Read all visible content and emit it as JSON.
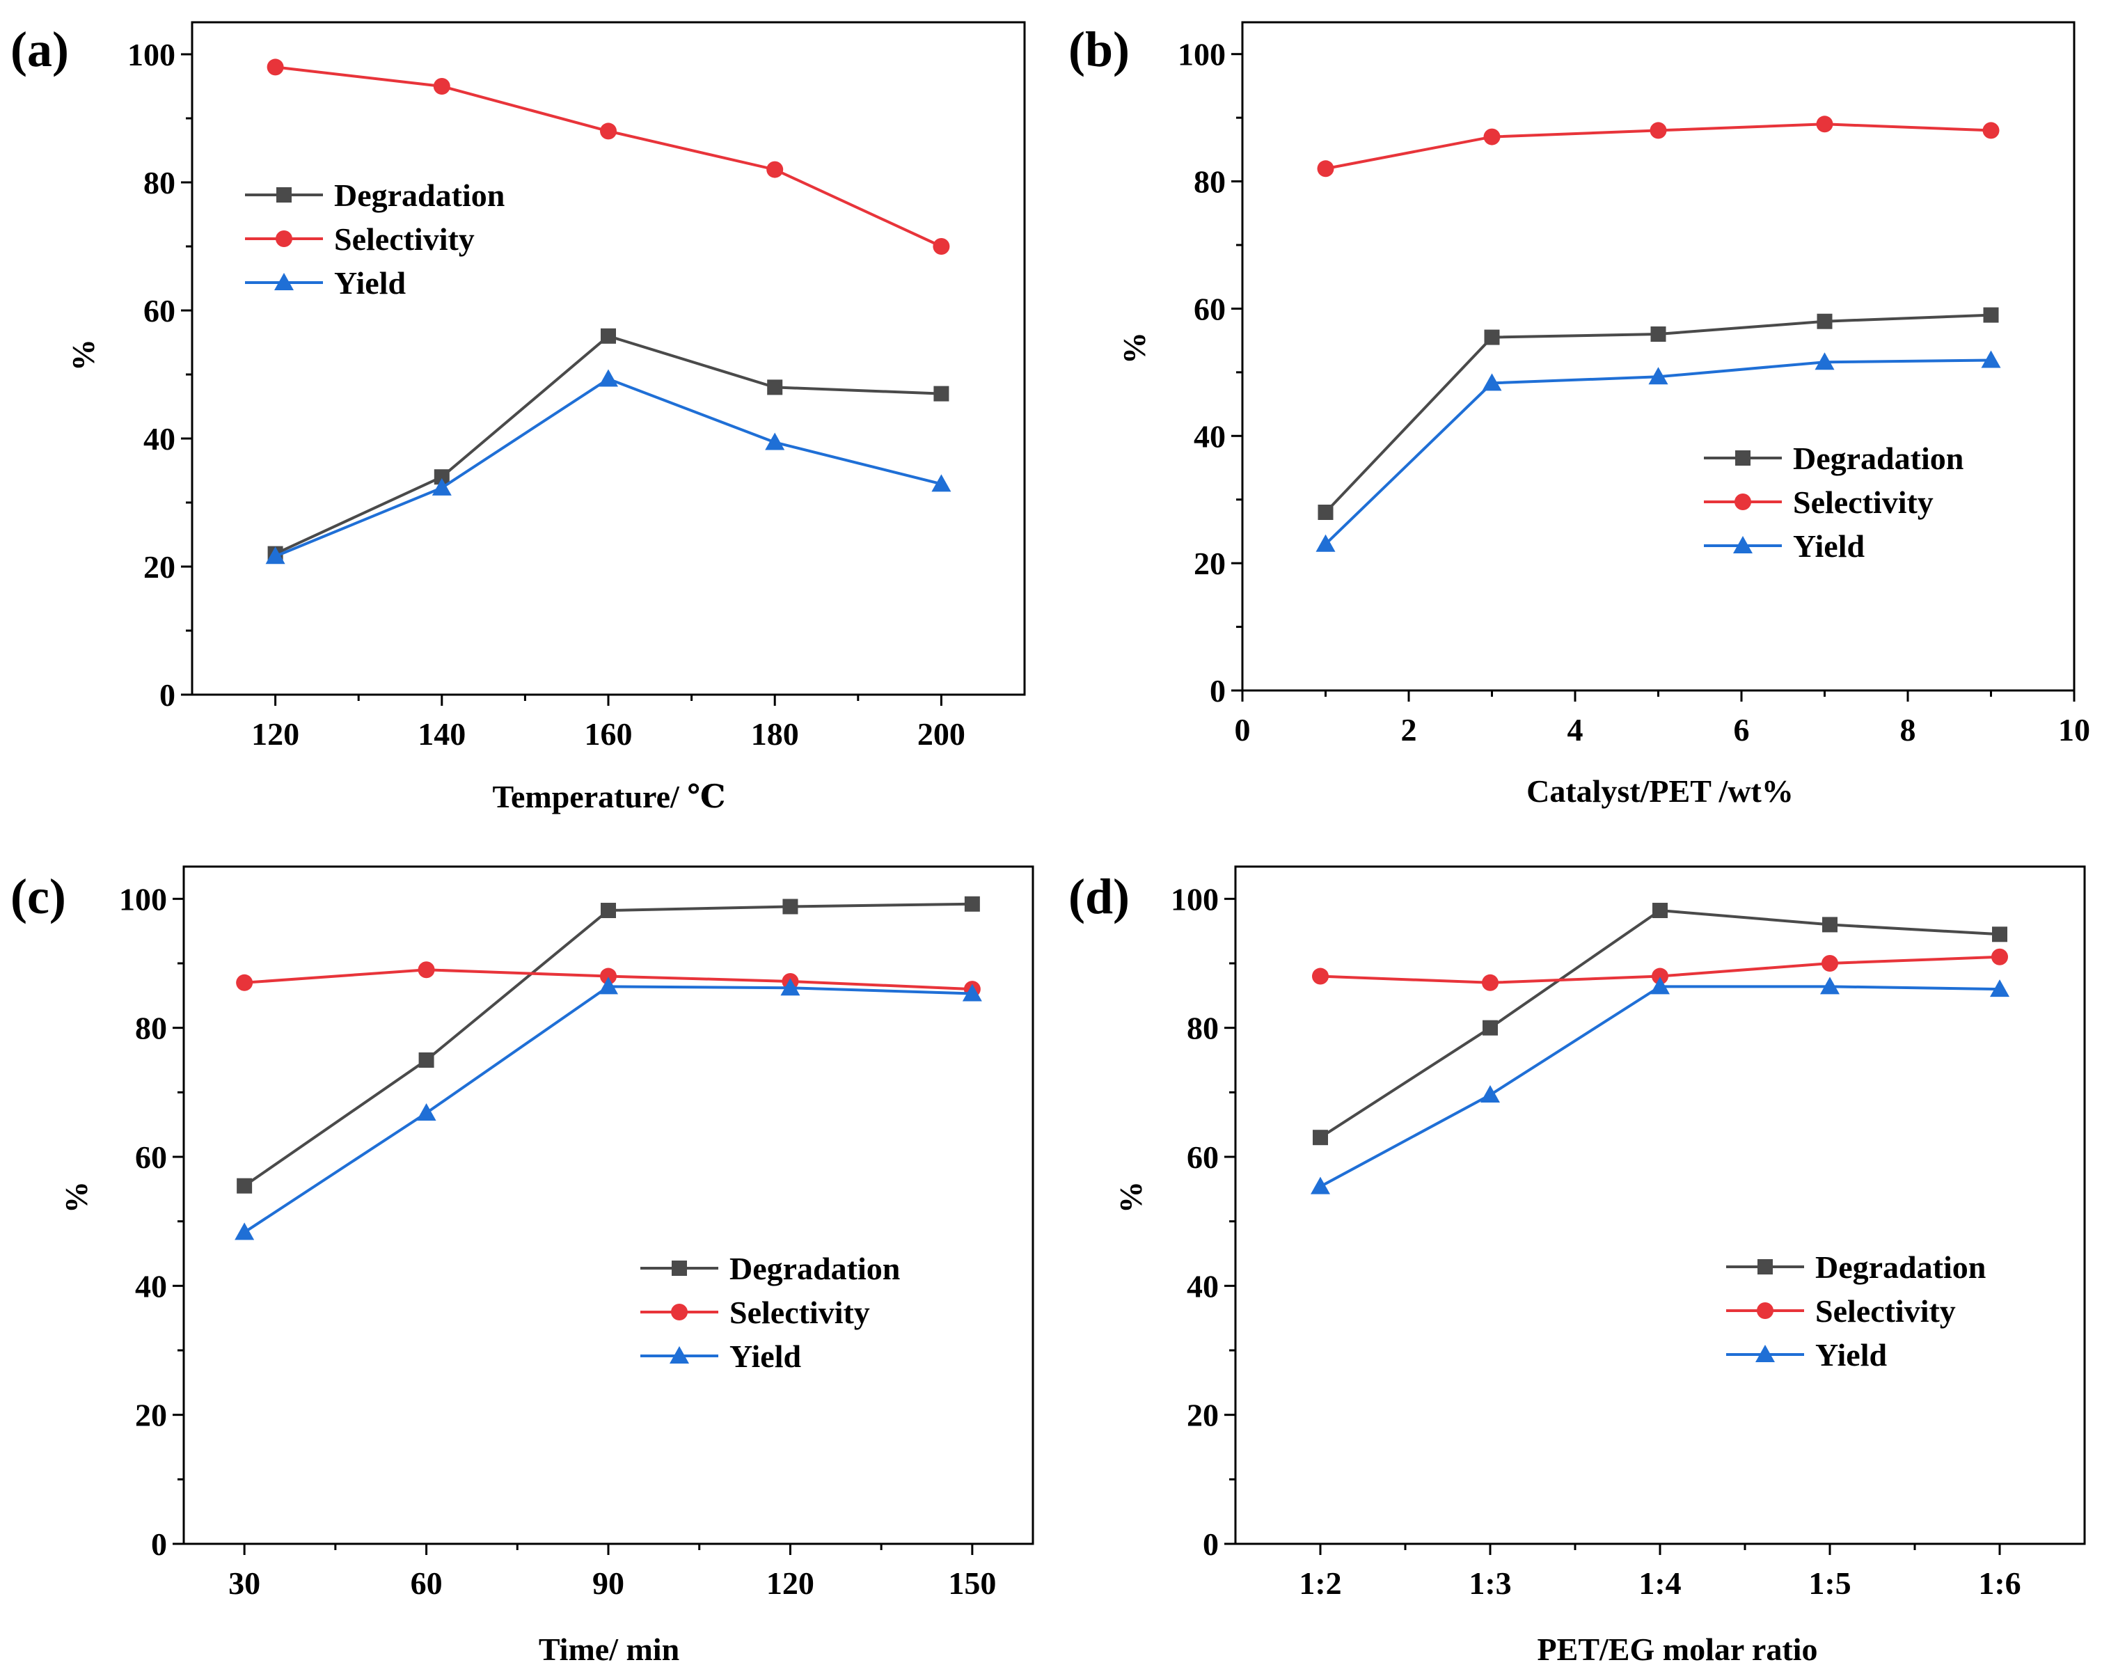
{
  "figure": {
    "colors": {
      "degradation": "#4a4a4a",
      "selectivity": "#e8343a",
      "yield": "#1f6fd6",
      "axis": "#000000"
    }
  },
  "chart_data": [
    {
      "panel_label": "(a)",
      "type": "line",
      "x_kind": "numeric",
      "x": [
        120,
        140,
        160,
        180,
        200
      ],
      "xlim": [
        110,
        210
      ],
      "x_ticks": [
        120,
        140,
        160,
        180,
        200
      ],
      "x_tick_labels": [
        "120",
        "140",
        "160",
        "180",
        "200"
      ],
      "ylim": [
        0,
        105
      ],
      "y_ticks": [
        0,
        20,
        40,
        60,
        80,
        100
      ],
      "y_tick_labels": [
        "0",
        "20",
        "40",
        "60",
        "80",
        "100"
      ],
      "xlabel": "Temperature/ ℃",
      "ylabel": "%",
      "legend_position": "upper-left",
      "series": [
        {
          "name": "Degradation",
          "marker": "square",
          "color_key": "degradation",
          "values": [
            22,
            34,
            56,
            48,
            47
          ]
        },
        {
          "name": "Selectivity",
          "marker": "circle",
          "color_key": "selectivity",
          "values": [
            98,
            95,
            88,
            82,
            70
          ]
        },
        {
          "name": "Yield",
          "marker": "triangle",
          "color_key": "yield",
          "values": [
            21.6,
            32.3,
            49.3,
            39.4,
            32.9
          ]
        }
      ]
    },
    {
      "panel_label": "(b)",
      "type": "line",
      "x_kind": "numeric",
      "x": [
        1,
        3,
        5,
        7,
        9
      ],
      "xlim": [
        0,
        10
      ],
      "x_ticks": [
        0,
        2,
        4,
        6,
        8,
        10
      ],
      "x_tick_labels": [
        "0",
        "2",
        "4",
        "6",
        "8",
        "10"
      ],
      "ylim": [
        0,
        105
      ],
      "y_ticks": [
        0,
        20,
        40,
        60,
        80,
        100
      ],
      "y_tick_labels": [
        "0",
        "20",
        "40",
        "60",
        "80",
        "100"
      ],
      "xlabel": "Catalyst/PET  /wt%",
      "ylabel": "%",
      "legend_position": "center-right",
      "series": [
        {
          "name": "Degradation",
          "marker": "square",
          "color_key": "degradation",
          "values": [
            28,
            55.5,
            56,
            58,
            59
          ]
        },
        {
          "name": "Selectivity",
          "marker": "circle",
          "color_key": "selectivity",
          "values": [
            82,
            87,
            88,
            89,
            88
          ]
        },
        {
          "name": "Yield",
          "marker": "triangle",
          "color_key": "yield",
          "values": [
            23,
            48.3,
            49.3,
            51.6,
            51.9
          ]
        }
      ]
    },
    {
      "panel_label": "(c)",
      "type": "line",
      "x_kind": "numeric",
      "x": [
        30,
        60,
        90,
        120,
        150
      ],
      "xlim": [
        20,
        160
      ],
      "x_ticks": [
        30,
        60,
        90,
        120,
        150
      ],
      "x_tick_labels": [
        "30",
        "60",
        "90",
        "120",
        "150"
      ],
      "ylim": [
        0,
        105
      ],
      "y_ticks": [
        0,
        20,
        40,
        60,
        80,
        100
      ],
      "y_tick_labels": [
        "0",
        "20",
        "40",
        "60",
        "80",
        "100"
      ],
      "xlabel": "Time/ min",
      "ylabel": "%",
      "legend_position": "center-right",
      "series": [
        {
          "name": "Degradation",
          "marker": "square",
          "color_key": "degradation",
          "values": [
            55.5,
            75,
            98.2,
            98.8,
            99.2
          ]
        },
        {
          "name": "Selectivity",
          "marker": "circle",
          "color_key": "selectivity",
          "values": [
            87,
            89,
            88,
            87.2,
            86
          ]
        },
        {
          "name": "Yield",
          "marker": "triangle",
          "color_key": "yield",
          "values": [
            48.3,
            66.8,
            86.4,
            86.2,
            85.3
          ]
        }
      ]
    },
    {
      "panel_label": "(d)",
      "type": "line",
      "x_kind": "categorical",
      "categories": [
        "1:2",
        "1:3",
        "1:4",
        "1:5",
        "1:6"
      ],
      "x": [
        1,
        2,
        3,
        4,
        5
      ],
      "xlim": [
        0.5,
        5.5
      ],
      "x_ticks": [
        1,
        2,
        3,
        4,
        5
      ],
      "x_tick_labels": [
        "1:2",
        "1:3",
        "1:4",
        "1:5",
        "1:6"
      ],
      "ylim": [
        0,
        105
      ],
      "y_ticks": [
        0,
        20,
        40,
        60,
        80,
        100
      ],
      "y_tick_labels": [
        "0",
        "20",
        "40",
        "60",
        "80",
        "100"
      ],
      "xlabel": "PET/EG  molar ratio",
      "ylabel": "%",
      "legend_position": "center-right",
      "series": [
        {
          "name": "Degradation",
          "marker": "square",
          "color_key": "degradation",
          "values": [
            63,
            80,
            98.2,
            96,
            94.5
          ]
        },
        {
          "name": "Selectivity",
          "marker": "circle",
          "color_key": "selectivity",
          "values": [
            88,
            87,
            88,
            90,
            91
          ]
        },
        {
          "name": "Yield",
          "marker": "triangle",
          "color_key": "yield",
          "values": [
            55.4,
            69.6,
            86.4,
            86.4,
            86
          ]
        }
      ]
    }
  ]
}
